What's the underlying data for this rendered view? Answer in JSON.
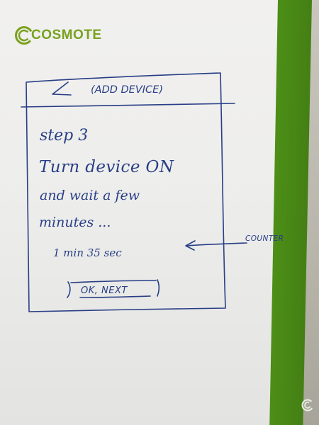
{
  "brand": {
    "name": "COSMOTE",
    "color": "#7aa11f"
  },
  "sketch": {
    "header_title": "(ADD DEVICE)",
    "back_symbol": "<",
    "step_label": "step 3",
    "instruction_line1": "Turn device ON",
    "instruction_line2": "and wait a few",
    "instruction_line3": "minutes ...",
    "counter_value": "1 min 35 sec",
    "button_label": "OK, NEXT",
    "annotation_label": "COUNTER",
    "ink_color": "#283e86"
  },
  "colors": {
    "board": "#eeeeec",
    "frame_green": "#4f9418",
    "ink": "#283e86"
  }
}
